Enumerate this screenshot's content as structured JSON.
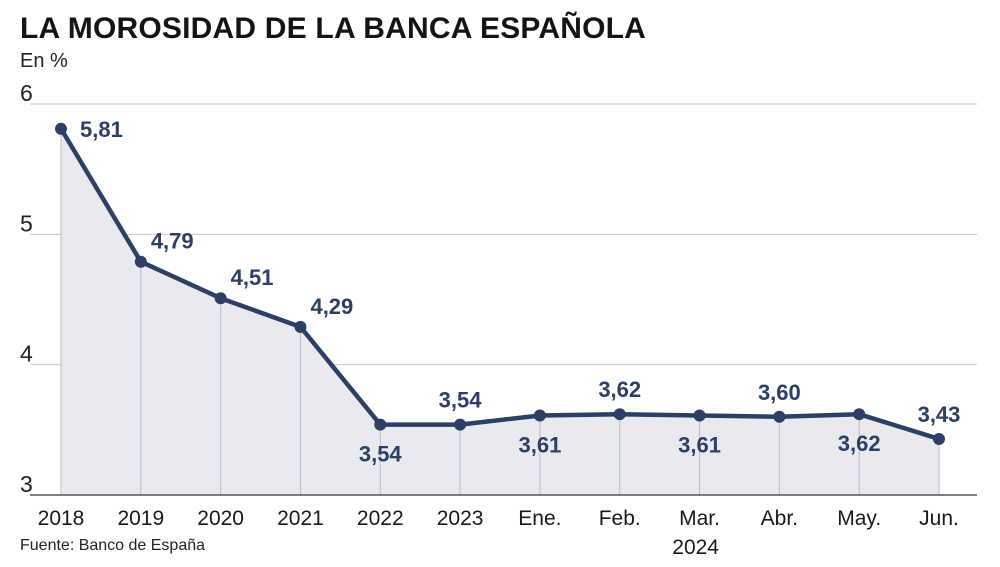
{
  "title": "LA MOROSIDAD DE LA BANCA ESPAÑOLA",
  "unit": "En %",
  "source": "Fuente: Banco de España",
  "colors": {
    "line": "#2c3f66",
    "area": "#e9eaf0",
    "grid": "#c9c9c9",
    "axis": "#555555"
  },
  "chart_data": {
    "type": "line",
    "categories": [
      "2018",
      "2019",
      "2020",
      "2021",
      "2022",
      "2023",
      "Ene.",
      "Feb.",
      "Mar.",
      "Abr.",
      "May.",
      "Jun."
    ],
    "category_group": "2024",
    "values": [
      5.81,
      4.79,
      4.51,
      4.29,
      3.54,
      3.54,
      3.61,
      3.62,
      3.61,
      3.6,
      3.62,
      3.43
    ],
    "value_labels": [
      "5,81",
      "4,79",
      "4,51",
      "4,29",
      "3,54",
      "3,54",
      "3,61",
      "3,62",
      "3,61",
      "3,60",
      "3,62",
      "3,43"
    ],
    "label_positions": [
      "above",
      "above",
      "above",
      "above",
      "below",
      "above",
      "below",
      "above",
      "below",
      "above",
      "below",
      "above"
    ],
    "ylim": [
      3,
      6
    ],
    "yticks": [
      "3",
      "4",
      "5",
      "6"
    ],
    "grid": true,
    "area_fill": true
  }
}
